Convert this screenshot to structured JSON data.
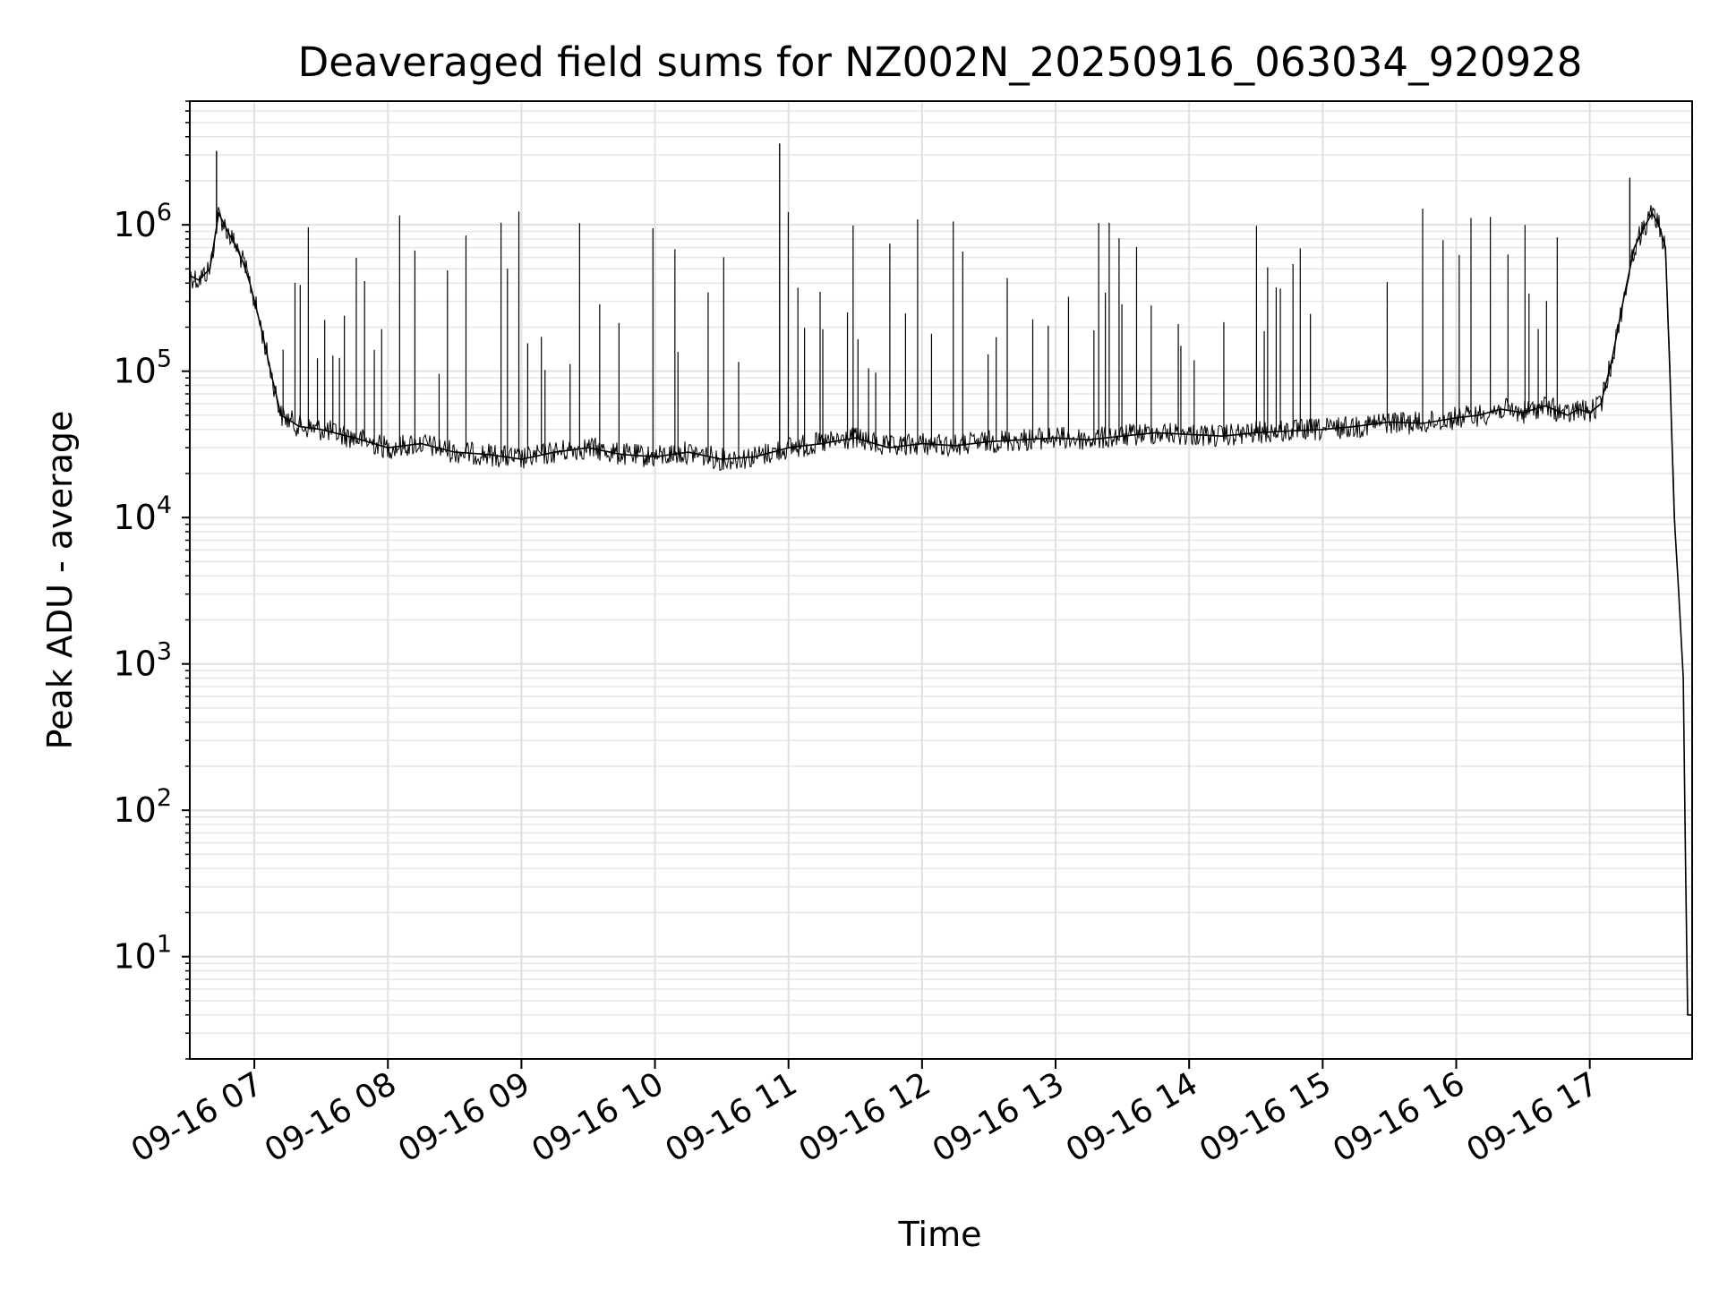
{
  "chart_data": {
    "type": "line",
    "title": "Deaveraged field sums for NZ002N_20250916_063034_920928",
    "xlabel": "Time",
    "ylabel": "Peak ADU - average",
    "yscale": "log",
    "grid": true,
    "legend": "none",
    "xlim": [
      "2025-09-16 06:31",
      "2025-09-16 17:46"
    ],
    "ylim": [
      2,
      7000000
    ],
    "x_tick_labels": [
      "09-16 07",
      "09-16 08",
      "09-16 09",
      "09-16 10",
      "09-16 11",
      "09-16 12",
      "09-16 13",
      "09-16 14",
      "09-16 15",
      "09-16 16",
      "09-16 17"
    ],
    "y_ticks": [
      {
        "value": 10,
        "base": "10",
        "exp": "1"
      },
      {
        "value": 100,
        "base": "10",
        "exp": "2"
      },
      {
        "value": 1000,
        "base": "10",
        "exp": "3"
      },
      {
        "value": 10000,
        "base": "10",
        "exp": "4"
      },
      {
        "value": 100000,
        "base": "10",
        "exp": "5"
      },
      {
        "value": 1000000,
        "base": "10",
        "exp": "6"
      }
    ],
    "line_color": "#000000",
    "series": [
      {
        "x": [
          "2025-09-16 06:31",
          "2025-09-16 06:35",
          "2025-09-16 06:40",
          "2025-09-16 06:44",
          "2025-09-16 06:48",
          "2025-09-16 06:52",
          "2025-09-16 06:55",
          "2025-09-16 06:58",
          "2025-09-16 07:03",
          "2025-09-16 07:08",
          "2025-09-16 07:12",
          "2025-09-16 07:17",
          "2025-09-16 07:20",
          "2025-09-16 07:30",
          "2025-09-16 07:45",
          "2025-09-16 08:00",
          "2025-09-16 08:15",
          "2025-09-16 08:30",
          "2025-09-16 08:45",
          "2025-09-16 09:00",
          "2025-09-16 09:15",
          "2025-09-16 09:30",
          "2025-09-16 09:45",
          "2025-09-16 10:00",
          "2025-09-16 10:15",
          "2025-09-16 10:30",
          "2025-09-16 10:45",
          "2025-09-16 11:00",
          "2025-09-16 11:15",
          "2025-09-16 11:30",
          "2025-09-16 11:45",
          "2025-09-16 12:00",
          "2025-09-16 12:15",
          "2025-09-16 12:30",
          "2025-09-16 12:45",
          "2025-09-16 13:00",
          "2025-09-16 13:15",
          "2025-09-16 13:30",
          "2025-09-16 13:45",
          "2025-09-16 14:00",
          "2025-09-16 14:15",
          "2025-09-16 14:30",
          "2025-09-16 14:45",
          "2025-09-16 15:00",
          "2025-09-16 15:15",
          "2025-09-16 15:30",
          "2025-09-16 15:45",
          "2025-09-16 16:00",
          "2025-09-16 16:10",
          "2025-09-16 16:20",
          "2025-09-16 16:30",
          "2025-09-16 16:40",
          "2025-09-16 16:50",
          "2025-09-16 16:55",
          "2025-09-16 17:00",
          "2025-09-16 17:05",
          "2025-09-16 17:10",
          "2025-09-16 17:15",
          "2025-09-16 17:20",
          "2025-09-16 17:25",
          "2025-09-16 17:28",
          "2025-09-16 17:31",
          "2025-09-16 17:34",
          "2025-09-16 17:36",
          "2025-09-16 17:38",
          "2025-09-16 17:40",
          "2025-09-16 17:42",
          "2025-09-16 17:43",
          "2025-09-16 17:44",
          "2025-09-16 17:45",
          "2025-09-16 17:46"
        ],
        "y": [
          450000,
          420000,
          500000,
          1200000,
          900000,
          700000,
          550000,
          400000,
          200000,
          90000,
          50000,
          45000,
          42000,
          40000,
          35000,
          30000,
          32000,
          28000,
          27000,
          25000,
          28000,
          30000,
          27000,
          26000,
          28000,
          25000,
          26000,
          30000,
          32000,
          35000,
          30000,
          32000,
          31000,
          33000,
          34000,
          35000,
          34000,
          36000,
          38000,
          37000,
          36000,
          38000,
          39000,
          40000,
          42000,
          45000,
          44000,
          48000,
          50000,
          55000,
          52000,
          58000,
          50000,
          55000,
          52000,
          60000,
          120000,
          300000,
          700000,
          1000000,
          1200000,
          1000000,
          700000,
          100000,
          10000,
          3000,
          800,
          50,
          4,
          4,
          4
        ]
      }
    ],
    "spike_tops": [
      {
        "x": "2025-09-16 06:43",
        "y": 3200000
      },
      {
        "x": "2025-09-16 10:56",
        "y": 3600000
      },
      {
        "x": "2025-09-16 17:18",
        "y": 2100000
      }
    ]
  }
}
